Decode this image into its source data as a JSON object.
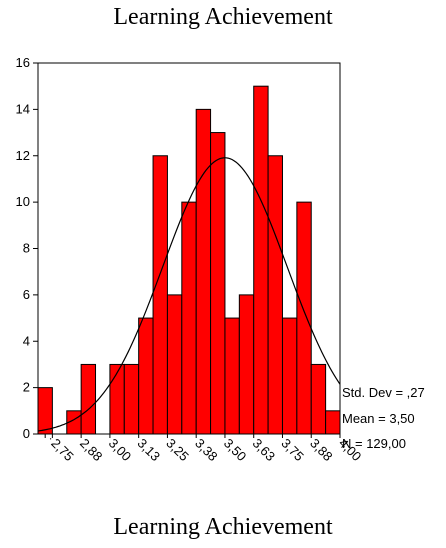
{
  "chart_data": {
    "type": "bar",
    "title": "Learning Achievement",
    "xlabel": "Learning Achievement",
    "ylabel": "",
    "ylim": [
      0,
      16
    ],
    "yticks": [
      0,
      2,
      4,
      6,
      8,
      10,
      12,
      14,
      16
    ],
    "x_tick_labels": [
      "",
      "2,75",
      "2,88",
      "3,00",
      "3,13",
      "3,25",
      "3,38",
      "3,50",
      "3,63",
      "3,75",
      "3,88",
      "4,00"
    ],
    "values": [
      2,
      0,
      1,
      3,
      0,
      3,
      3,
      5,
      12,
      6,
      10,
      14,
      13,
      5,
      6,
      15,
      12,
      5,
      10,
      3,
      1
    ],
    "bar_color": "#ff0000",
    "normal_curve": {
      "mean": 3.5,
      "std_dev": 0.27,
      "n": 129
    },
    "stats": {
      "std_dev": "Std. Dev = ,27",
      "mean": "Mean = 3,50",
      "n": "N = 129,00"
    }
  }
}
